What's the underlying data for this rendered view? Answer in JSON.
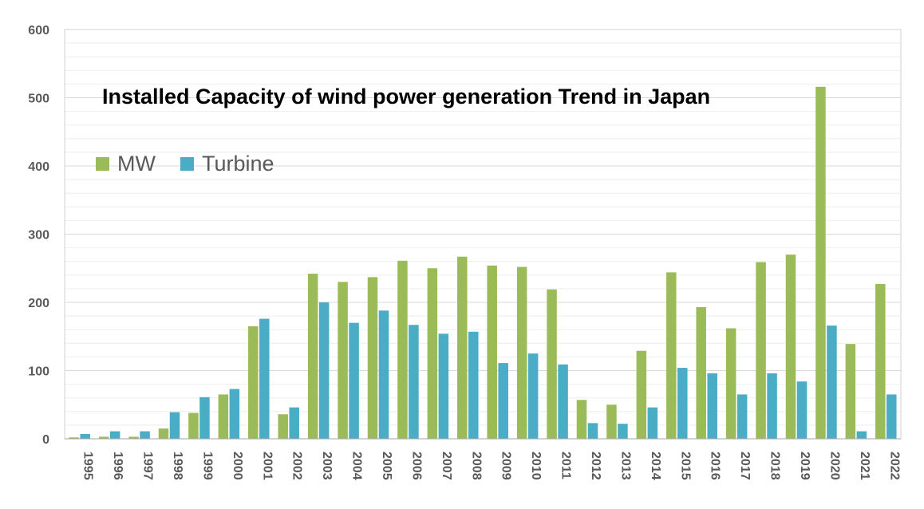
{
  "chart_data": {
    "type": "bar",
    "title": "Installed Capacity of wind power generation Trend in Japan",
    "xlabel": "",
    "ylabel": "",
    "ylim": [
      0,
      600
    ],
    "y_ticks": [
      "0",
      "100",
      "200",
      "300",
      "400",
      "500",
      "600"
    ],
    "grid": true,
    "legend_position": "upper-left",
    "categories": [
      "1995",
      "1996",
      "1997",
      "1998",
      "1999",
      "2000",
      "2001",
      "2002",
      "2003",
      "2004",
      "2005",
      "2006",
      "2007",
      "2008",
      "2009",
      "2010",
      "2011",
      "2012",
      "2013",
      "2014",
      "2015",
      "2016",
      "2017",
      "2018",
      "2019",
      "2020",
      "2021",
      "2022"
    ],
    "series": [
      {
        "name": "MW",
        "color": "#9bbb59",
        "values": [
          2,
          3,
          3,
          15,
          38,
          65,
          165,
          36,
          242,
          230,
          237,
          261,
          250,
          267,
          254,
          252,
          219,
          57,
          50,
          129,
          244,
          193,
          162,
          259,
          270,
          516,
          139,
          227
        ]
      },
      {
        "name": "Turbine",
        "color": "#4bacc6",
        "values": [
          7,
          11,
          11,
          39,
          61,
          73,
          176,
          46,
          200,
          170,
          188,
          167,
          154,
          157,
          111,
          125,
          109,
          23,
          22,
          46,
          104,
          96,
          65,
          96,
          84,
          166,
          11,
          65
        ]
      }
    ]
  }
}
